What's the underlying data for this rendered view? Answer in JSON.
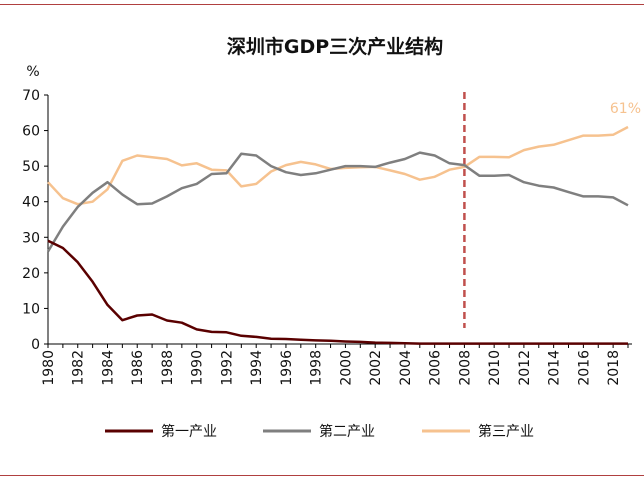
{
  "chart_data": {
    "type": "line",
    "title": "深圳市GDP三次产业结构",
    "ylabel": "%",
    "xlabel": "",
    "ylim": [
      0,
      70
    ],
    "yticks": [
      "0",
      "10",
      "20",
      "30",
      "40",
      "50",
      "60",
      "70"
    ],
    "x": [
      1980,
      1981,
      1982,
      1983,
      1984,
      1985,
      1986,
      1987,
      1988,
      1989,
      1990,
      1991,
      1992,
      1993,
      1994,
      1995,
      1996,
      1997,
      1998,
      1999,
      2000,
      2001,
      2002,
      2003,
      2004,
      2005,
      2006,
      2007,
      2008,
      2009,
      2010,
      2011,
      2012,
      2013,
      2014,
      2015,
      2016,
      2017,
      2018,
      2019
    ],
    "xticks": [
      "1980",
      "1982",
      "1984",
      "1986",
      "1988",
      "1990",
      "1992",
      "1994",
      "1996",
      "1998",
      "2000",
      "2002",
      "2004",
      "2006",
      "2008",
      "2010",
      "2012",
      "2014",
      "2016",
      "2018"
    ],
    "series": [
      {
        "name": "第一产业",
        "color": "#5a0000",
        "values": [
          29,
          27,
          23,
          17.5,
          11,
          6.7,
          8,
          8.3,
          6.6,
          6,
          4.1,
          3.4,
          3.3,
          2.3,
          2,
          1.5,
          1.4,
          1.2,
          1,
          0.9,
          0.7,
          0.6,
          0.4,
          0.3,
          0.2,
          0.1,
          0.1,
          0.1,
          0.1,
          0.1,
          0.1,
          0.1,
          0.1,
          0.1,
          0.1,
          0.1,
          0.1,
          0.1,
          0.1,
          0.1
        ]
      },
      {
        "name": "第二产业",
        "color": "#7f7f7f",
        "values": [
          26,
          33,
          38.5,
          42.5,
          45.5,
          42,
          39.3,
          39.5,
          41.5,
          43.8,
          45,
          47.8,
          48,
          53.5,
          53,
          50,
          48.3,
          47.5,
          48,
          49,
          50,
          50,
          49.8,
          51,
          52,
          53.8,
          53,
          50.8,
          50.3,
          47.3,
          47.3,
          47.5,
          45.5,
          44.5,
          44,
          42.7,
          41.5,
          41.5,
          41.2,
          39
        ]
      },
      {
        "name": "第三产业",
        "color": "#f6c28f",
        "values": [
          45.5,
          41,
          39.3,
          40,
          43.5,
          51.5,
          53,
          52.5,
          52,
          50.2,
          50.8,
          49,
          48.8,
          44.3,
          45,
          48.5,
          50.3,
          51.2,
          50.5,
          49.2,
          49.5,
          49.7,
          49.8,
          48.8,
          47.8,
          46.2,
          47,
          49,
          49.8,
          52.6,
          52.6,
          52.5,
          54.5,
          55.5,
          56,
          57.3,
          58.6,
          58.6,
          58.8,
          61
        ]
      }
    ],
    "annotations": [
      {
        "text": "61%",
        "series": "第三产业",
        "x": 2019
      }
    ],
    "reference_line": {
      "x": 2008,
      "style": "dashed",
      "color": "#c0504d"
    },
    "legend": "bottom"
  }
}
